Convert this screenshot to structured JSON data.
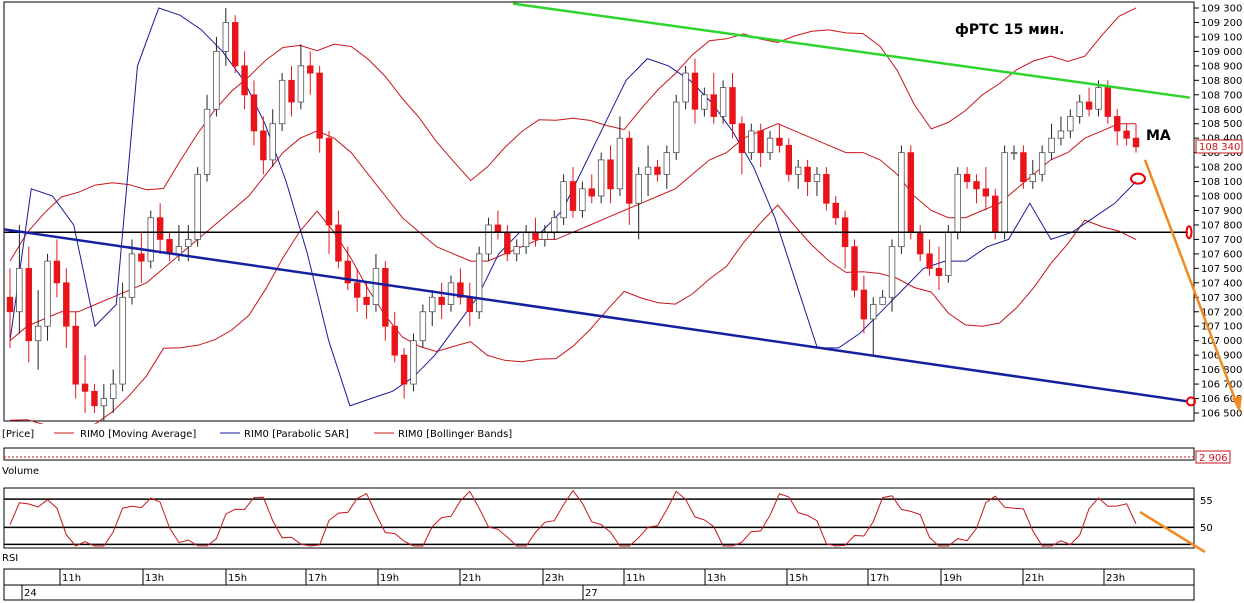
{
  "colors": {
    "bull": "#ffffff",
    "bear": "#e8141a",
    "ma": "#c8161d",
    "bb": "#c8161d",
    "sar": "#1a1a99",
    "support": "#1520a0",
    "resistance": "#2ed52e",
    "forecast": "#f08a24",
    "level": "#000000",
    "grid": "#000000"
  },
  "chart_data": [
    {
      "type": "candlestick",
      "title": "фРТС   15 мин.",
      "annotation": "MA",
      "ylim": [
        106450,
        109350
      ],
      "y_ticks": [
        "109 300",
        "109 200",
        "109 100",
        "109 000",
        "108 900",
        "108 800",
        "108 700",
        "108 600",
        "108 500",
        "108 400",
        "108 300",
        "108 200",
        "108 100",
        "108 000",
        "107 900",
        "107 800",
        "107 700",
        "107 600",
        "107 500",
        "107 400",
        "107 300",
        "107 200",
        "107 100",
        "107 000",
        "106 900",
        "106 800",
        "106 700",
        "106 600",
        "106 500"
      ],
      "current_price": "108 340",
      "horizontal_level": 107750,
      "candles": [
        [
          107300,
          107500,
          106950,
          107200
        ],
        [
          107200,
          107800,
          107050,
          107500
        ],
        [
          107500,
          107650,
          106850,
          107000
        ],
        [
          107000,
          107350,
          106800,
          107100
        ],
        [
          107100,
          107600,
          107000,
          107550
        ],
        [
          107550,
          107700,
          107300,
          107400
        ],
        [
          107400,
          107500,
          106950,
          107100
        ],
        [
          107100,
          107200,
          106600,
          106700
        ],
        [
          106700,
          106900,
          106500,
          106650
        ],
        [
          106650,
          106700,
          106500,
          106550
        ],
        [
          106550,
          106700,
          106450,
          106600
        ],
        [
          106600,
          106800,
          106500,
          106700
        ],
        [
          106700,
          107400,
          106650,
          107300
        ],
        [
          107300,
          107700,
          107250,
          107600
        ],
        [
          107600,
          107750,
          107400,
          107550
        ],
        [
          107550,
          107900,
          107500,
          107850
        ],
        [
          107850,
          107950,
          107600,
          107700
        ],
        [
          107700,
          107750,
          107550,
          107600
        ],
        [
          107600,
          107800,
          107550,
          107650
        ],
        [
          107650,
          107800,
          107550,
          107700
        ],
        [
          107700,
          108200,
          107650,
          108150
        ],
        [
          108150,
          108700,
          108100,
          108600
        ],
        [
          108600,
          109100,
          108550,
          109000
        ],
        [
          109000,
          109300,
          108900,
          109200
        ],
        [
          109200,
          109250,
          108850,
          108900
        ],
        [
          108900,
          109000,
          108600,
          108700
        ],
        [
          108700,
          108800,
          108350,
          108450
        ],
        [
          108450,
          108550,
          108150,
          108250
        ],
        [
          108250,
          108600,
          108200,
          108500
        ],
        [
          108500,
          108850,
          108450,
          108800
        ],
        [
          108800,
          108900,
          108550,
          108650
        ],
        [
          108650,
          109050,
          108600,
          108900
        ],
        [
          108900,
          109000,
          108700,
          108850
        ],
        [
          108850,
          108900,
          108300,
          108400
        ],
        [
          108400,
          108450,
          107600,
          107800
        ],
        [
          107800,
          107900,
          107500,
          107550
        ],
        [
          107550,
          107650,
          107350,
          107400
        ],
        [
          107400,
          107500,
          107200,
          107300
        ],
        [
          107300,
          107400,
          107150,
          107250
        ],
        [
          107250,
          107600,
          107200,
          107500
        ],
        [
          107500,
          107550,
          107000,
          107100
        ],
        [
          107100,
          107200,
          106850,
          106900
        ],
        [
          106900,
          106950,
          106600,
          106700
        ],
        [
          106700,
          107050,
          106650,
          107000
        ],
        [
          107000,
          107250,
          106950,
          107200
        ],
        [
          107200,
          107350,
          107100,
          107300
        ],
        [
          107300,
          107400,
          107150,
          107250
        ],
        [
          107250,
          107450,
          107200,
          107400
        ],
        [
          107400,
          107500,
          107250,
          107300
        ],
        [
          107300,
          107400,
          107100,
          107200
        ],
        [
          107200,
          107650,
          107150,
          107600
        ],
        [
          107600,
          107850,
          107550,
          107800
        ],
        [
          107800,
          107900,
          107700,
          107750
        ],
        [
          107750,
          107800,
          107550,
          107600
        ],
        [
          107600,
          107700,
          107550,
          107650
        ],
        [
          107650,
          107800,
          107600,
          107750
        ],
        [
          107750,
          107850,
          107650,
          107700
        ],
        [
          107700,
          107800,
          107650,
          107750
        ],
        [
          107750,
          107900,
          107700,
          107850
        ],
        [
          107850,
          108150,
          107800,
          108100
        ],
        [
          108100,
          108200,
          107850,
          107900
        ],
        [
          107900,
          108100,
          107850,
          108050
        ],
        [
          108050,
          108150,
          107950,
          108000
        ],
        [
          108000,
          108300,
          107950,
          108250
        ],
        [
          108250,
          108350,
          107950,
          108050
        ],
        [
          108050,
          108550,
          108000,
          108400
        ],
        [
          108400,
          108450,
          107800,
          107950
        ],
        [
          107950,
          108200,
          107700,
          108150
        ],
        [
          108150,
          108350,
          108000,
          108200
        ],
        [
          108200,
          108250,
          108100,
          108150
        ],
        [
          108150,
          108350,
          108050,
          108300
        ],
        [
          108300,
          108700,
          108250,
          108650
        ],
        [
          108650,
          108900,
          108600,
          108850
        ],
        [
          108850,
          108950,
          108500,
          108600
        ],
        [
          108600,
          108750,
          108550,
          108700
        ],
        [
          108700,
          108850,
          108500,
          108550
        ],
        [
          108550,
          108800,
          108500,
          108750
        ],
        [
          108750,
          108850,
          108400,
          108500
        ],
        [
          108500,
          108550,
          108150,
          108300
        ],
        [
          108300,
          108500,
          108250,
          108450
        ],
        [
          108450,
          108500,
          108200,
          108300
        ],
        [
          108300,
          108450,
          108250,
          108400
        ],
        [
          108400,
          108500,
          108300,
          108350
        ],
        [
          108350,
          108400,
          108100,
          108150
        ],
        [
          108150,
          108250,
          108050,
          108200
        ],
        [
          108200,
          108250,
          108000,
          108100
        ],
        [
          108100,
          108200,
          108000,
          108150
        ],
        [
          108150,
          108200,
          107900,
          107950
        ],
        [
          107950,
          108000,
          107800,
          107850
        ],
        [
          107850,
          107900,
          107500,
          107650
        ],
        [
          107650,
          107700,
          107300,
          107350
        ],
        [
          107350,
          107450,
          107050,
          107150
        ],
        [
          107150,
          107300,
          106900,
          107250
        ],
        [
          107250,
          107350,
          107250,
          107300
        ],
        [
          107300,
          107700,
          107200,
          107650
        ],
        [
          107650,
          108350,
          107600,
          108300
        ],
        [
          108300,
          108350,
          107700,
          107750
        ],
        [
          107750,
          107800,
          107550,
          107600
        ],
        [
          107600,
          107700,
          107450,
          107500
        ],
        [
          107500,
          107650,
          107350,
          107450
        ],
        [
          107450,
          107800,
          107400,
          107750
        ],
        [
          107750,
          108200,
          107700,
          108150
        ],
        [
          108150,
          108200,
          108050,
          108100
        ],
        [
          108100,
          108150,
          107950,
          108050
        ],
        [
          108050,
          108200,
          107900,
          108000
        ],
        [
          108000,
          108050,
          107700,
          107750
        ],
        [
          107750,
          108350,
          107700,
          108300
        ],
        [
          108300,
          108350,
          108250,
          108300
        ],
        [
          108300,
          108350,
          108050,
          108100
        ],
        [
          108100,
          108250,
          108050,
          108150
        ],
        [
          108150,
          108350,
          108100,
          108300
        ],
        [
          108300,
          108500,
          108250,
          108400
        ],
        [
          108400,
          108550,
          108350,
          108450
        ],
        [
          108450,
          108600,
          108400,
          108550
        ],
        [
          108550,
          108700,
          108500,
          108650
        ],
        [
          108650,
          108750,
          108550,
          108600
        ],
        [
          108600,
          108800,
          108550,
          108750
        ],
        [
          108750,
          108800,
          108500,
          108550
        ],
        [
          108550,
          108600,
          108350,
          108450
        ],
        [
          108450,
          108500,
          108350,
          108400
        ],
        [
          108400,
          108500,
          108300,
          108340
        ]
      ],
      "moving_average": [
        107000,
        107100,
        107150,
        107200,
        107200,
        107250,
        107300,
        107350,
        107400,
        107500,
        107600,
        107700,
        107800,
        107900,
        108000,
        108150,
        108300,
        108400,
        108450,
        108400,
        108300,
        108150,
        108000,
        107850,
        107750,
        107650,
        107600,
        107550,
        107550,
        107600,
        107650,
        107700,
        107700,
        107750,
        107800,
        107850,
        107900,
        107950,
        108000,
        108050,
        108150,
        108250,
        108300,
        108400,
        108450,
        108500,
        108450,
        108400,
        108350,
        108300,
        108300,
        108250,
        108150,
        108000,
        107900,
        107850,
        107850,
        107900,
        107950,
        108050,
        108150,
        108250,
        108300,
        108400,
        108450,
        108500,
        108500
      ],
      "parabolic_sar": [
        107000,
        108050,
        108000,
        107800,
        107100,
        107250,
        108900,
        109300,
        109250,
        109150,
        109000,
        108800,
        108500,
        108100,
        107600,
        107000,
        106550,
        106600,
        106650,
        106750,
        106900,
        107100,
        107300,
        107600,
        107750,
        107750,
        107900,
        108200,
        108500,
        108800,
        108950,
        108900,
        108800,
        108650,
        108450,
        108200,
        107850,
        107400,
        106950,
        106950,
        107050,
        107200,
        107350,
        107500,
        107550,
        107550,
        107650,
        107700,
        107950,
        107700,
        107750,
        107850,
        107950,
        108100
      ]
    },
    {
      "type": "bar",
      "title": "Volume",
      "current_value": "2 906"
    },
    {
      "type": "line",
      "title": "RSI",
      "y_ticks": [
        "55",
        "50"
      ],
      "levels": [
        55,
        50
      ]
    }
  ],
  "legend": {
    "price": "[Price]",
    "ma": "RIM0 [Moving Average]",
    "sar": "RIM0 [Parabolic SAR]",
    "bb": "RIM0 [Bollinger Bands]"
  },
  "time_axis": {
    "hours": [
      "11h",
      "13h",
      "15h",
      "17h",
      "19h",
      "21h",
      "23h",
      "11h",
      "13h",
      "15h",
      "17h",
      "19h",
      "21h",
      "23h"
    ],
    "dates": [
      "24",
      "27"
    ]
  }
}
